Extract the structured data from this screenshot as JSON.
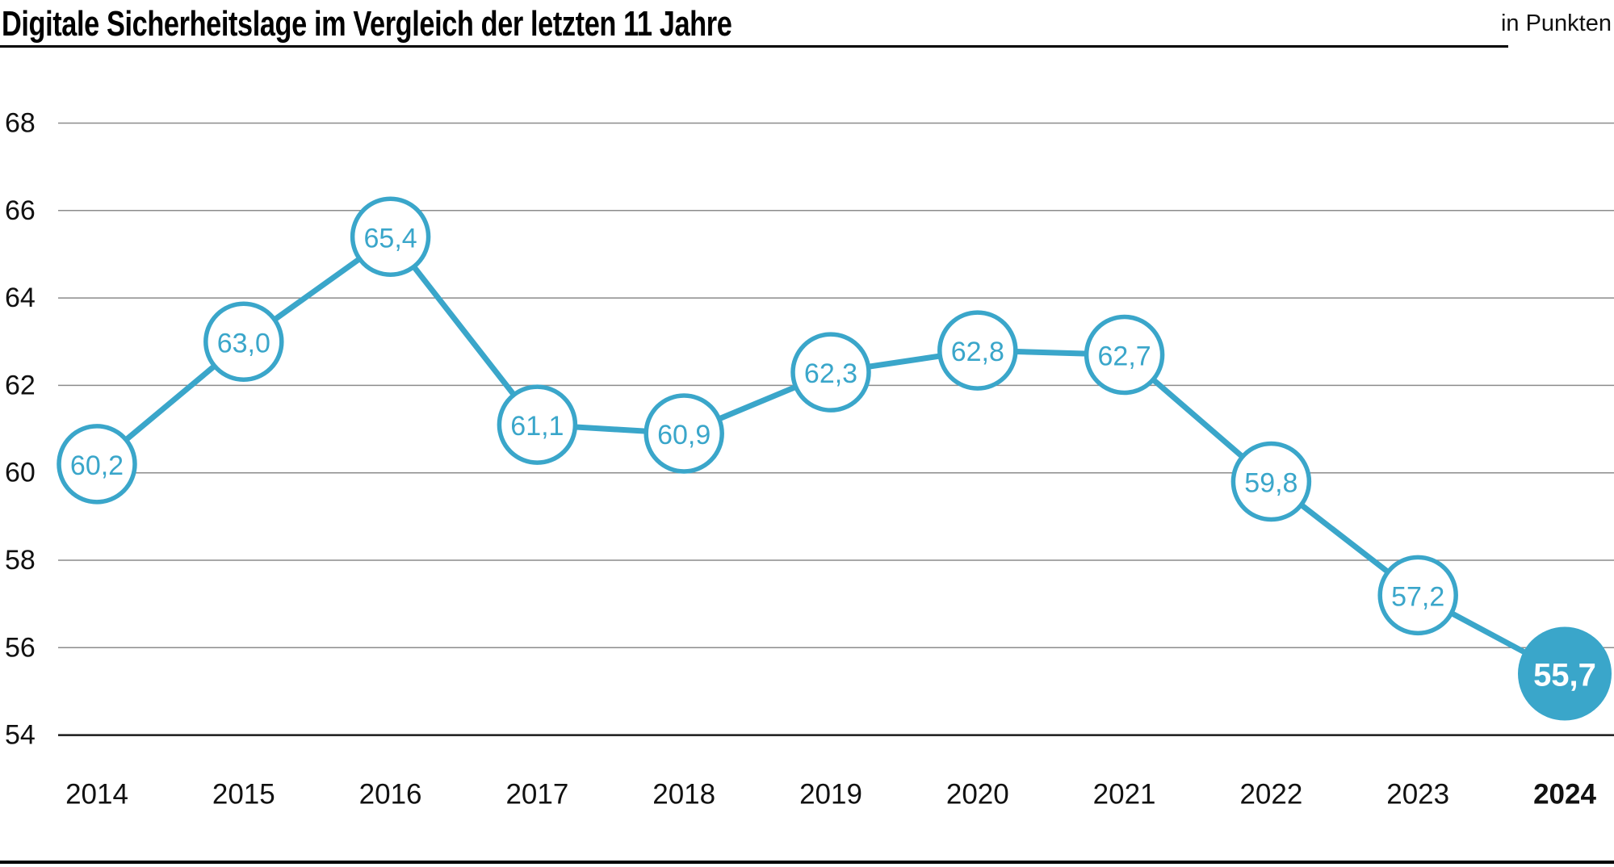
{
  "header": {
    "title": "Digitale Sicherheitslage im Vergleich der letzten 11 Jahre",
    "unit_label": "in Punkten"
  },
  "chart_data": {
    "type": "line",
    "title": "Digitale Sicherheitslage im Vergleich der letzten 11 Jahre",
    "unit_label": "in Punkten",
    "xlabel": "",
    "ylabel": "Punkte",
    "categories": [
      "2014",
      "2015",
      "2016",
      "2017",
      "2018",
      "2019",
      "2020",
      "2021",
      "2022",
      "2023",
      "2024"
    ],
    "values": [
      60.2,
      63.0,
      65.4,
      61.1,
      60.9,
      62.3,
      62.8,
      62.7,
      59.8,
      57.2,
      55.7
    ],
    "value_labels": [
      "60,2",
      "63,0",
      "65,4",
      "61,1",
      "60,9",
      "62,3",
      "62,8",
      "62,7",
      "59,8",
      "57,2",
      "55,7"
    ],
    "y_ticks": [
      68,
      66,
      64,
      62,
      60,
      58,
      56,
      54
    ],
    "ylim": [
      54,
      68
    ],
    "grid": true,
    "legend": "none",
    "highlight_index": 10,
    "highlight_category_bold": true,
    "colors": {
      "accent": "#3aa6ca",
      "gridline": "#8c8c8c",
      "baseline": "#1a1a1a",
      "text": "#111111",
      "point_fill": "#ffffff",
      "highlight_text": "#ffffff",
      "rule": "#000000"
    }
  }
}
